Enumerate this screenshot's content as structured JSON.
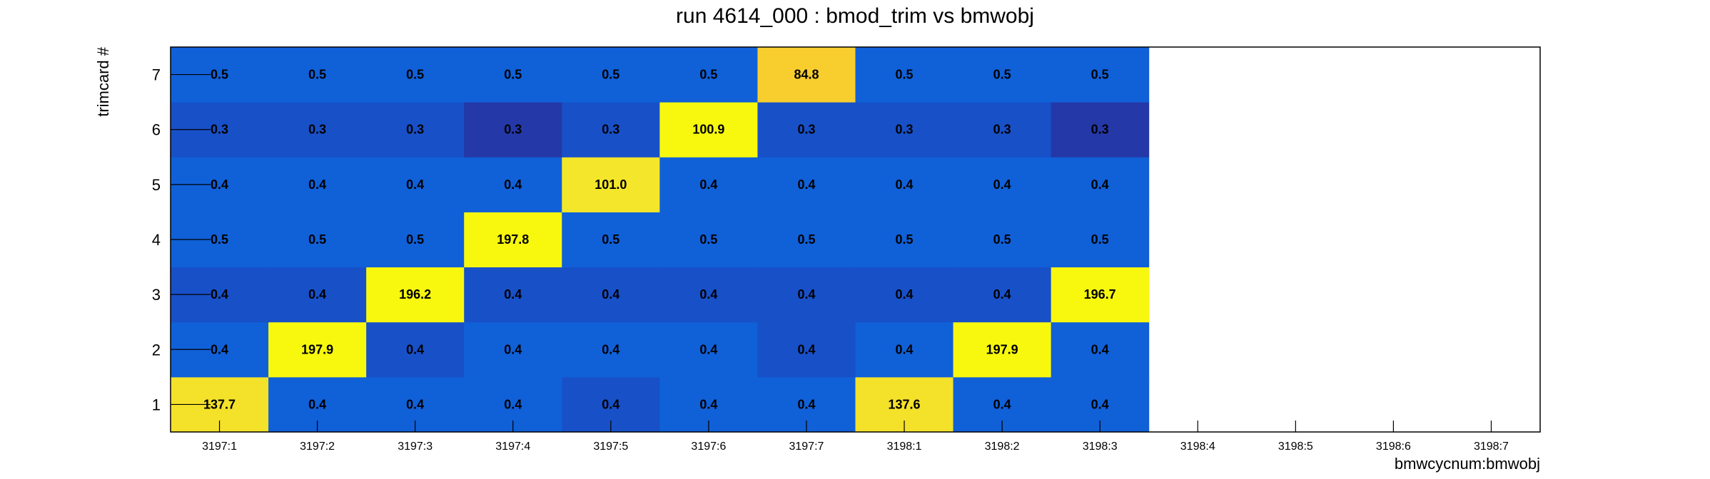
{
  "chart_data": {
    "type": "heatmap",
    "title": "run 4614_000 : bmod_trim vs bmwobj",
    "xlabel": "bmwcycnum:bmwobj",
    "ylabel": "trimcard #",
    "x_categories": [
      "3197:1",
      "3197:2",
      "3197:3",
      "3197:4",
      "3197:5",
      "3197:6",
      "3197:7",
      "3198:1",
      "3198:2",
      "3198:3",
      "3198:4",
      "3198:5",
      "3198:6",
      "3198:7"
    ],
    "y_categories": [
      "1",
      "2",
      "3",
      "4",
      "5",
      "6",
      "7"
    ],
    "values": [
      [
        137.7,
        0.4,
        0.4,
        0.4,
        0.4,
        0.4,
        0.4,
        137.6,
        0.4,
        0.4,
        null,
        null,
        null,
        null
      ],
      [
        0.4,
        197.9,
        0.4,
        0.4,
        0.4,
        0.4,
        0.4,
        0.4,
        197.9,
        0.4,
        null,
        null,
        null,
        null
      ],
      [
        0.4,
        0.4,
        196.2,
        0.4,
        0.4,
        0.4,
        0.4,
        0.4,
        0.4,
        196.7,
        null,
        null,
        null,
        null
      ],
      [
        0.5,
        0.5,
        0.5,
        197.8,
        0.5,
        0.5,
        0.5,
        0.5,
        0.5,
        0.5,
        null,
        null,
        null,
        null
      ],
      [
        0.4,
        0.4,
        0.4,
        0.4,
        101.0,
        0.4,
        0.4,
        0.4,
        0.4,
        0.4,
        null,
        null,
        null,
        null
      ],
      [
        0.3,
        0.3,
        0.3,
        0.3,
        0.3,
        100.9,
        0.3,
        0.3,
        0.3,
        0.3,
        null,
        null,
        null,
        null
      ],
      [
        0.5,
        0.5,
        0.5,
        0.5,
        0.5,
        0.5,
        84.8,
        0.5,
        0.5,
        0.5,
        null,
        null,
        null,
        null
      ]
    ],
    "labels": [
      [
        "137.7",
        "0.4",
        "0.4",
        "0.4",
        "0.4",
        "0.4",
        "0.4",
        "137.6",
        "0.4",
        "0.4"
      ],
      [
        "0.4",
        "197.9",
        "0.4",
        "0.4",
        "0.4",
        "0.4",
        "0.4",
        "0.4",
        "197.9",
        "0.4"
      ],
      [
        "0.4",
        "0.4",
        "196.2",
        "0.4",
        "0.4",
        "0.4",
        "0.4",
        "0.4",
        "0.4",
        "196.7"
      ],
      [
        "0.5",
        "0.5",
        "0.5",
        "197.8",
        "0.5",
        "0.5",
        "0.5",
        "0.5",
        "0.5",
        "0.5"
      ],
      [
        "0.4",
        "0.4",
        "0.4",
        "0.4",
        "101.0",
        "0.4",
        "0.4",
        "0.4",
        "0.4",
        "0.4"
      ],
      [
        "0.3",
        "0.3",
        "0.3",
        "0.3",
        "0.3",
        "100.9",
        "0.3",
        "0.3",
        "0.3",
        "0.3"
      ],
      [
        "0.5",
        "0.5",
        "0.5",
        "0.5",
        "0.5",
        "0.5",
        "84.8",
        "0.5",
        "0.5",
        "0.5"
      ]
    ],
    "cell_colors": [
      [
        "#f4e12a",
        "#1060d8",
        "#1060d8",
        "#1060d8",
        "#1850c8",
        "#1060d8",
        "#1060d8",
        "#f4e12a",
        "#1060d8",
        "#1060d8"
      ],
      [
        "#1060d8",
        "#f8f80e",
        "#1850c8",
        "#1060d8",
        "#1060d8",
        "#1060d8",
        "#1850c8",
        "#1060d8",
        "#f8f80e",
        "#1060d8"
      ],
      [
        "#1850c8",
        "#1850c8",
        "#f8f80e",
        "#1850c8",
        "#1850c8",
        "#1850c8",
        "#1850c8",
        "#1850c8",
        "#1850c8",
        "#f8f80e"
      ],
      [
        "#1060d8",
        "#1060d8",
        "#1060d8",
        "#f8f80e",
        "#1060d8",
        "#1060d8",
        "#1060d8",
        "#1060d8",
        "#1060d8",
        "#1060d8"
      ],
      [
        "#1060d8",
        "#1060d8",
        "#1060d8",
        "#1060d8",
        "#f4e62a",
        "#1060d8",
        "#1060d8",
        "#1060d8",
        "#1060d8",
        "#1060d8"
      ],
      [
        "#1850c8",
        "#1850c8",
        "#1850c8",
        "#2438a8",
        "#1850c8",
        "#f8f80e",
        "#1850c8",
        "#1850c8",
        "#1850c8",
        "#2438a8"
      ],
      [
        "#1060d8",
        "#1060d8",
        "#1060d8",
        "#1060d8",
        "#1060d8",
        "#1060d8",
        "#f8cd2e",
        "#1060d8",
        "#1060d8",
        "#1060d8"
      ]
    ],
    "grid": false,
    "legend": "none",
    "colors": {
      "background": "#ffffff",
      "frame": "#000000",
      "text": "#000000"
    }
  }
}
